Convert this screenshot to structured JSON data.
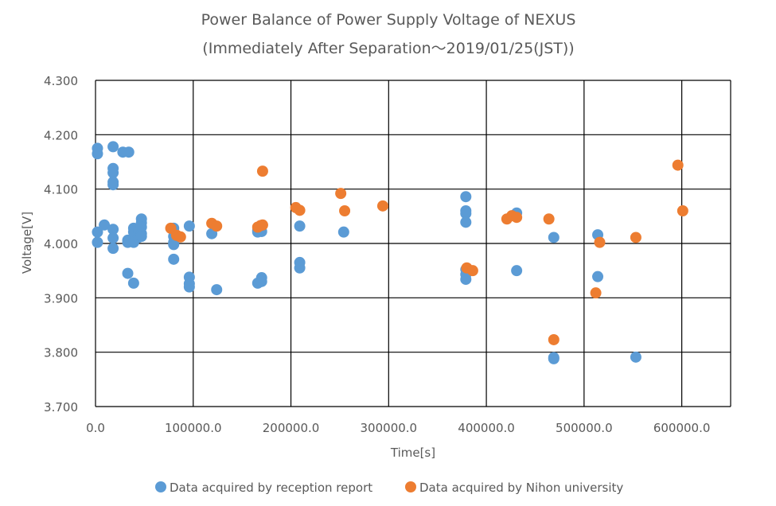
{
  "chart_data": {
    "type": "scatter",
    "title": "Power Balance of Power Supply Voltage of NEXUS",
    "subtitle": "(Immediately After Separation～2019/01/25(JST))",
    "xlabel": "Time[s]",
    "ylabel": "Voltage[V]",
    "xlim": [
      0,
      650000
    ],
    "ylim": [
      3.7,
      4.3
    ],
    "x_ticks": [
      {
        "value": 0,
        "label": "0.0"
      },
      {
        "value": 100000,
        "label": "100000.0"
      },
      {
        "value": 200000,
        "label": "200000.0"
      },
      {
        "value": 300000,
        "label": "300000.0"
      },
      {
        "value": 400000,
        "label": "400000.0"
      },
      {
        "value": 500000,
        "label": "500000.0"
      },
      {
        "value": 600000,
        "label": "600000.0"
      }
    ],
    "y_ticks": [
      {
        "value": 3.7,
        "label": "3.700"
      },
      {
        "value": 3.8,
        "label": "3.800"
      },
      {
        "value": 3.9,
        "label": "3.900"
      },
      {
        "value": 4.0,
        "label": "4.000"
      },
      {
        "value": 4.1,
        "label": "4.100"
      },
      {
        "value": 4.2,
        "label": "4.200"
      },
      {
        "value": 4.3,
        "label": "4.300"
      }
    ],
    "grid": true,
    "legend_position": "bottom",
    "series": [
      {
        "name": "Data acquired by reception report",
        "color": "#5b9bd5",
        "points": [
          [
            2000,
            4.175
          ],
          [
            2000,
            4.165
          ],
          [
            2000,
            4.021
          ],
          [
            2000,
            4.002
          ],
          [
            9000,
            4.034
          ],
          [
            18000,
            4.178
          ],
          [
            18000,
            4.138
          ],
          [
            18000,
            4.13
          ],
          [
            18000,
            4.113
          ],
          [
            18000,
            4.108
          ],
          [
            18000,
            4.026
          ],
          [
            18000,
            4.01
          ],
          [
            18000,
            3.991
          ],
          [
            28000,
            4.168
          ],
          [
            34000,
            4.168
          ],
          [
            33000,
            4.006
          ],
          [
            33000,
            4.002
          ],
          [
            33000,
            3.945
          ],
          [
            39000,
            4.028
          ],
          [
            39000,
            4.021
          ],
          [
            39000,
            4.002
          ],
          [
            39000,
            3.927
          ],
          [
            44000,
            4.023
          ],
          [
            44000,
            4.011
          ],
          [
            47000,
            4.045
          ],
          [
            47000,
            4.038
          ],
          [
            47000,
            4.03
          ],
          [
            47000,
            4.018
          ],
          [
            47000,
            4.013
          ],
          [
            80000,
            4.028
          ],
          [
            80000,
            4.013
          ],
          [
            80000,
            4.002
          ],
          [
            80000,
            3.998
          ],
          [
            80000,
            3.971
          ],
          [
            96000,
            4.032
          ],
          [
            96000,
            3.938
          ],
          [
            96000,
            3.926
          ],
          [
            96000,
            3.92
          ],
          [
            119000,
            4.018
          ],
          [
            124000,
            3.915
          ],
          [
            166000,
            4.024
          ],
          [
            166000,
            4.021
          ],
          [
            166000,
            3.927
          ],
          [
            170000,
            4.022
          ],
          [
            170000,
            3.937
          ],
          [
            170000,
            3.93
          ],
          [
            209000,
            4.032
          ],
          [
            209000,
            3.965
          ],
          [
            209000,
            3.955
          ],
          [
            254000,
            4.021
          ],
          [
            379000,
            4.086
          ],
          [
            379000,
            4.06
          ],
          [
            379000,
            4.055
          ],
          [
            379000,
            4.039
          ],
          [
            379000,
            3.952
          ],
          [
            379000,
            3.943
          ],
          [
            379000,
            3.934
          ],
          [
            431000,
            4.056
          ],
          [
            431000,
            3.95
          ],
          [
            469000,
            4.011
          ],
          [
            469000,
            3.79
          ],
          [
            469000,
            3.788
          ],
          [
            514000,
            4.016
          ],
          [
            514000,
            3.939
          ],
          [
            553000,
            3.791
          ]
        ]
      },
      {
        "name": "Data acquired by Nihon university",
        "color": "#ed7d31",
        "points": [
          [
            77000,
            4.028
          ],
          [
            83000,
            4.015
          ],
          [
            87000,
            4.012
          ],
          [
            119000,
            4.037
          ],
          [
            124000,
            4.032
          ],
          [
            166000,
            4.03
          ],
          [
            169000,
            4.033
          ],
          [
            171000,
            4.034
          ],
          [
            171000,
            4.133
          ],
          [
            205000,
            4.066
          ],
          [
            209000,
            4.061
          ],
          [
            251000,
            4.092
          ],
          [
            255000,
            4.06
          ],
          [
            294000,
            4.069
          ],
          [
            380000,
            3.955
          ],
          [
            386000,
            3.95
          ],
          [
            421000,
            4.045
          ],
          [
            426000,
            4.051
          ],
          [
            431000,
            4.048
          ],
          [
            464000,
            4.045
          ],
          [
            469000,
            3.823
          ],
          [
            512000,
            3.909
          ],
          [
            516000,
            4.002
          ],
          [
            553000,
            4.011
          ],
          [
            596000,
            4.144
          ],
          [
            601000,
            4.06
          ]
        ]
      }
    ]
  }
}
